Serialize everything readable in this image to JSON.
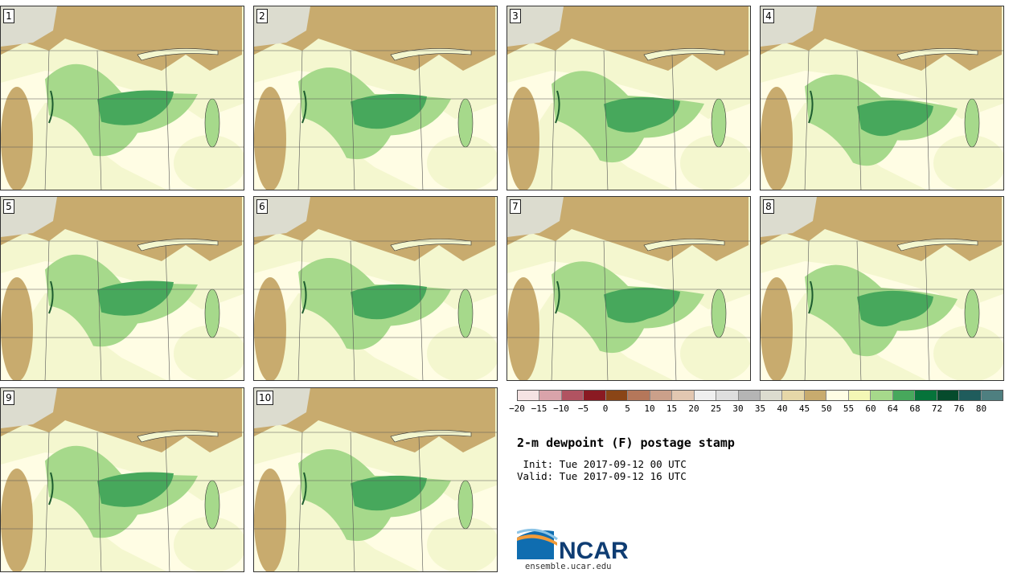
{
  "colors": {
    "land_dry": "#c8ab6e",
    "land_cold": "#dcdccf",
    "land_mid": "#fffde4",
    "land_light": "#f4f7cf",
    "green_light": "#a6d98b",
    "green_mid": "#47a85c",
    "lake_green": "#a6d98b",
    "snow_gray": "#b5b5b5"
  },
  "panels": [
    {
      "label": "1"
    },
    {
      "label": "2"
    },
    {
      "label": "3"
    },
    {
      "label": "4"
    },
    {
      "label": "5"
    },
    {
      "label": "6"
    },
    {
      "label": "7"
    },
    {
      "label": "8"
    },
    {
      "label": "9"
    },
    {
      "label": "10"
    }
  ],
  "colorbar": {
    "colors": [
      "#f5e3e3",
      "#d9a3aa",
      "#b15361",
      "#8a1a22",
      "#8a4516",
      "#b5775a",
      "#cba08a",
      "#e2c7b1",
      "#efefef",
      "#dedede",
      "#b5b5b5",
      "#dcdccf",
      "#e6d7a8",
      "#c8ab6e",
      "#fffde4",
      "#f4f7b5",
      "#a6d98b",
      "#47a85c",
      "#06733a",
      "#064b2c",
      "#1f5c5c",
      "#4e7f80"
    ],
    "ticks": [
      "−20",
      "−15",
      "−10",
      "−5",
      "0",
      "5",
      "10",
      "15",
      "20",
      "25",
      "30",
      "35",
      "40",
      "45",
      "50",
      "55",
      "60",
      "64",
      "68",
      "72",
      "76",
      "80"
    ]
  },
  "title": "2-m dewpoint (F) postage stamp",
  "init": " Init: Tue 2017-09-12 00 UTC",
  "valid": "Valid: Tue 2017-09-12 16 UTC",
  "logo": {
    "text": "NCAR",
    "url": "ensemble.ucar.edu"
  }
}
